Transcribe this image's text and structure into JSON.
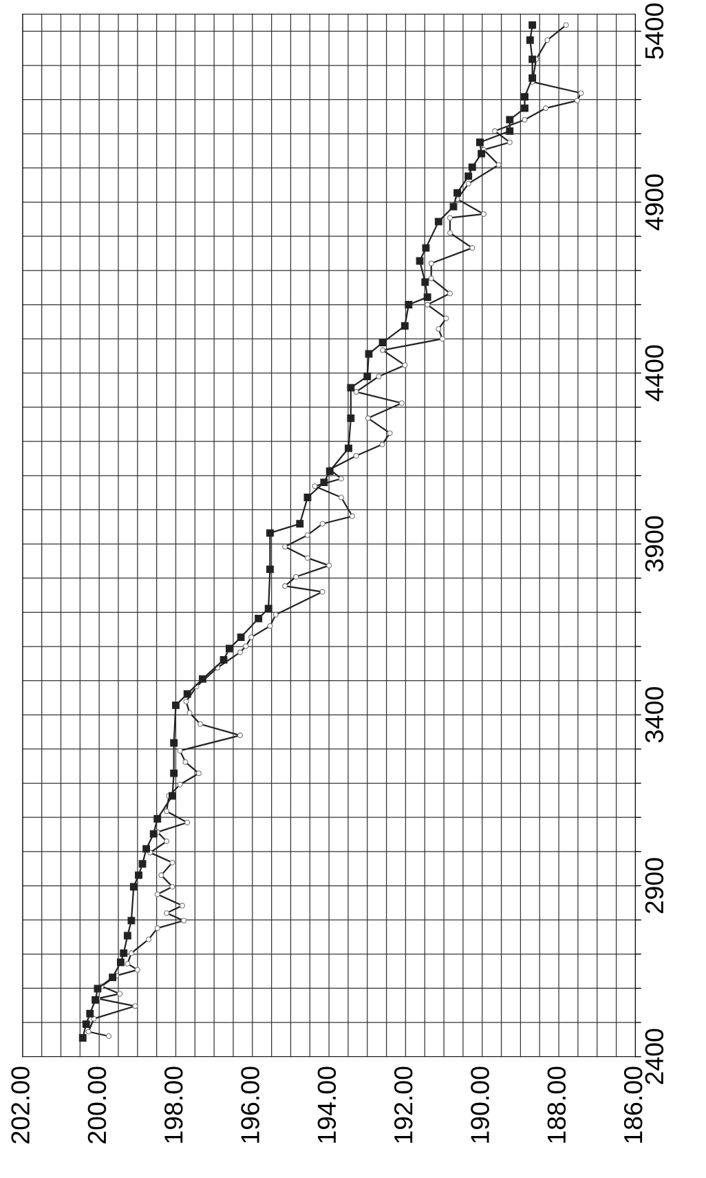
{
  "chart_data": {
    "type": "line",
    "grid": true,
    "ylim": [
      2400,
      5450
    ],
    "yticks": [
      2400,
      {
        "value": 2500,
        "label": null
      },
      {
        "value": 2600,
        "label": null
      },
      {
        "value": 2700,
        "label": null
      },
      {
        "value": 2800,
        "label": null
      },
      2900,
      {
        "value": 3000,
        "label": null
      },
      {
        "value": 3100,
        "label": null
      },
      {
        "value": 3200,
        "label": null
      },
      {
        "value": 3300,
        "label": null
      },
      3400,
      {
        "value": 3500,
        "label": null
      },
      {
        "value": 3600,
        "label": null
      },
      {
        "value": 3700,
        "label": null
      },
      {
        "value": 3800,
        "label": null
      },
      3900,
      {
        "value": 4000,
        "label": null
      },
      {
        "value": 4100,
        "label": null
      },
      {
        "value": 4200,
        "label": null
      },
      {
        "value": 4300,
        "label": null
      },
      4400,
      {
        "value": 4500,
        "label": null
      },
      {
        "value": 4600,
        "label": null
      },
      {
        "value": 4700,
        "label": null
      },
      {
        "value": 4800,
        "label": null
      },
      4900,
      {
        "value": 5000,
        "label": null
      },
      {
        "value": 5100,
        "label": null
      },
      {
        "value": 5200,
        "label": null
      },
      {
        "value": 5300,
        "label": null
      },
      5400
    ],
    "xlim": [
      202,
      186
    ],
    "xticks": [
      {
        "value": 186,
        "label": "186.00"
      },
      {
        "value": 186.5,
        "label": null
      },
      {
        "value": 187,
        "label": null
      },
      {
        "value": 187.5,
        "label": null
      },
      {
        "value": 188,
        "label": "188.00"
      },
      {
        "value": 188.5,
        "label": null
      },
      {
        "value": 189,
        "label": null
      },
      {
        "value": 189.5,
        "label": null
      },
      {
        "value": 190,
        "label": "190.00"
      },
      {
        "value": 190.5,
        "label": null
      },
      {
        "value": 191,
        "label": null
      },
      {
        "value": 191.5,
        "label": null
      },
      {
        "value": 192,
        "label": "192.00"
      },
      {
        "value": 192.5,
        "label": null
      },
      {
        "value": 193,
        "label": null
      },
      {
        "value": 193.5,
        "label": null
      },
      {
        "value": 194,
        "label": "194.00"
      },
      {
        "value": 194.5,
        "label": null
      },
      {
        "value": 195,
        "label": null
      },
      {
        "value": 195.5,
        "label": null
      },
      {
        "value": 196,
        "label": "196.00"
      },
      {
        "value": 196.5,
        "label": null
      },
      {
        "value": 197,
        "label": null
      },
      {
        "value": 197.5,
        "label": null
      },
      {
        "value": 198,
        "label": "198.00"
      },
      {
        "value": 198.5,
        "label": null
      },
      {
        "value": 199,
        "label": null
      },
      {
        "value": 199.5,
        "label": null
      },
      {
        "value": 200,
        "label": "200.00"
      },
      {
        "value": 200.5,
        "label": null
      },
      {
        "value": 201,
        "label": null
      },
      {
        "value": 201.5,
        "label": null
      },
      {
        "value": 202,
        "label": "202.00"
      }
    ],
    "series": [
      {
        "color": "#222222",
        "marker": "square",
        "values": [
          2455,
          2495,
          2526,
          2566,
          2599,
          2632,
          2676,
          2703,
          2754,
          2798,
          2897,
          2931,
          2964,
          3008,
          3052,
          3096,
          3163,
          3229,
          3318,
          3428,
          3461,
          3505,
          3561,
          3594,
          3627,
          3682,
          3711,
          3826,
          3932,
          3959,
          4036,
          4080,
          4113,
          4180,
          4268,
          4357,
          4390,
          4456,
          4489,
          4538,
          4600,
          4622,
          4666,
          4728,
          4766,
          4843,
          4887,
          4927,
          4976,
          5002,
          5042,
          5075,
          5108,
          5141,
          5175,
          5208,
          5263,
          5318,
          5374,
          5418
        ],
        "x": [
          200.43,
          200.34,
          200.24,
          200.1,
          200.04,
          199.65,
          199.44,
          199.36,
          199.26,
          199.16,
          199.1,
          198.97,
          198.87,
          198.77,
          198.58,
          198.48,
          198.09,
          198.05,
          198.05,
          198.0,
          197.7,
          197.3,
          196.75,
          196.6,
          196.3,
          195.84,
          195.58,
          195.54,
          195.54,
          194.76,
          194.56,
          194.13,
          193.98,
          193.49,
          193.43,
          193.43,
          193.0,
          192.96,
          192.6,
          192.02,
          191.92,
          191.43,
          191.49,
          191.63,
          191.47,
          191.14,
          190.75,
          190.65,
          190.36,
          190.26,
          190.02,
          190.06,
          189.28,
          189.28,
          188.89,
          188.89,
          188.69,
          188.69,
          188.75,
          188.69
        ]
      },
      {
        "color": "#222222",
        "marker": "circle",
        "values": [
          2460,
          2473,
          2511,
          2548,
          2570,
          2584,
          2606,
          2637,
          2654,
          2672,
          2703,
          2743,
          2776,
          2798,
          2820,
          2842,
          2875,
          2897,
          2931,
          2968,
          2997,
          3030,
          3057,
          3085,
          3118,
          3163,
          3196,
          3229,
          3262,
          3295,
          3340,
          3373,
          3406,
          3439,
          3483,
          3538,
          3583,
          3601,
          3627,
          3660,
          3693,
          3760,
          3777,
          3804,
          3837,
          3859,
          3892,
          3926,
          3959,
          3981,
          4036,
          4069,
          4091,
          4118,
          4158,
          4191,
          4224,
          4268,
          4312,
          4345,
          4390,
          4423,
          4467,
          4500,
          4529,
          4560,
          4600,
          4633,
          4677,
          4721,
          4766,
          4810,
          4854,
          4865,
          4909,
          4954,
          5009,
          5053,
          5075,
          5108,
          5141,
          5175,
          5197,
          5219,
          5252,
          5318,
          5374,
          5418
        ],
        "x": [
          199.75,
          200.28,
          200.14,
          199.06,
          200.04,
          199.46,
          199.94,
          199.55,
          199.0,
          199.26,
          199.16,
          198.71,
          198.48,
          197.79,
          198.24,
          197.83,
          198.48,
          198.09,
          198.38,
          198.09,
          198.67,
          198.24,
          198.48,
          197.7,
          198.24,
          198.18,
          197.89,
          197.4,
          197.75,
          197.89,
          196.32,
          197.36,
          197.64,
          197.73,
          197.46,
          196.91,
          196.32,
          196.17,
          196.03,
          195.54,
          195.39,
          194.17,
          195.15,
          194.86,
          194.0,
          194.56,
          195.15,
          194.56,
          194.17,
          193.39,
          193.68,
          194.37,
          193.68,
          193.98,
          193.29,
          192.61,
          192.41,
          192.98,
          192.1,
          193.29,
          192.7,
          192.02,
          192.6,
          191.04,
          191.14,
          190.94,
          191.43,
          190.84,
          191.33,
          191.33,
          190.26,
          190.84,
          190.84,
          189.96,
          190.65,
          190.36,
          189.57,
          189.96,
          189.28,
          189.67,
          188.89,
          188.34,
          187.52,
          187.42,
          188.69,
          188.59,
          188.3,
          187.81
        ]
      }
    ]
  }
}
